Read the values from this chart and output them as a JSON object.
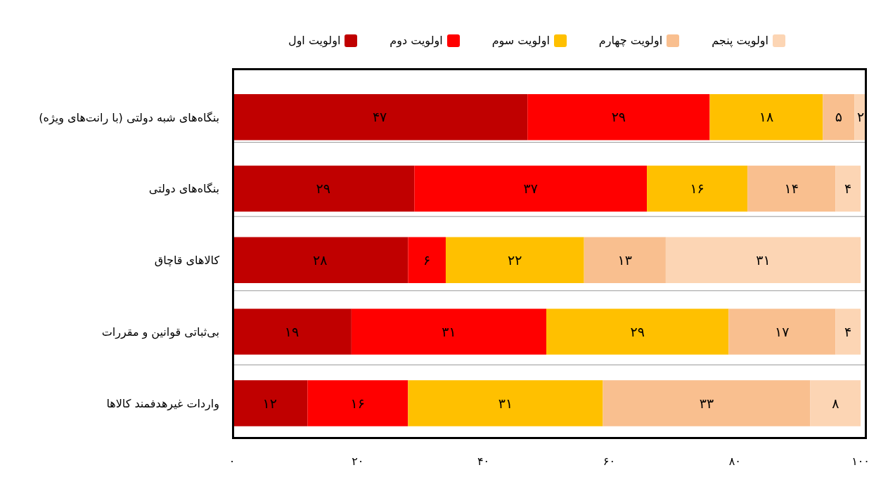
{
  "chart_data": {
    "type": "bar",
    "orientation": "horizontal",
    "stacked": true,
    "categories": [
      "بنگاه‌های شبه دولتی (با رانت‌های ویژه)",
      "بنگاه‌های دولتی",
      "کالاهای قاچاق",
      "بی‌ثباتی قوانین و مقررات",
      "واردات غیرهدفمند کالاها"
    ],
    "series": [
      {
        "name": "اولویت اول",
        "color": "#c00000",
        "values": [
          47,
          29,
          28,
          19,
          12
        ],
        "value_labels": [
          "۴۷",
          "۲۹",
          "۲۸",
          "۱۹",
          "۱۲"
        ]
      },
      {
        "name": "اولویت دوم",
        "color": "#ff0000",
        "values": [
          29,
          37,
          6,
          31,
          16
        ],
        "value_labels": [
          "۲۹",
          "۳۷",
          "۶",
          "۳۱",
          "۱۶"
        ]
      },
      {
        "name": "اولویت سوم",
        "color": "#ffc000",
        "values": [
          18,
          16,
          22,
          29,
          31
        ],
        "value_labels": [
          "۱۸",
          "۱۶",
          "۲۲",
          "۲۹",
          "۳۱"
        ]
      },
      {
        "name": "اولویت چهارم",
        "color": "#f9bf8f",
        "values": [
          5,
          14,
          13,
          17,
          33
        ],
        "value_labels": [
          "۵",
          "۱۴",
          "۱۳",
          "۱۷",
          "۳۳"
        ]
      },
      {
        "name": "اولویت پنجم",
        "color": "#fcd5b4",
        "values": [
          2,
          4,
          31,
          4,
          8
        ],
        "value_labels": [
          "۲",
          "۴",
          "۳۱",
          "۴",
          "۸"
        ]
      }
    ],
    "xlim": [
      0,
      101
    ],
    "xticks": [
      {
        "value": 0,
        "label": "۰"
      },
      {
        "value": 20,
        "label": "۲۰"
      },
      {
        "value": 40,
        "label": "۴۰"
      },
      {
        "value": 60,
        "label": "۶۰"
      },
      {
        "value": 80,
        "label": "۸۰"
      },
      {
        "value": 100,
        "label": "۱۰۰"
      }
    ],
    "grid": "y",
    "legend": "top"
  }
}
